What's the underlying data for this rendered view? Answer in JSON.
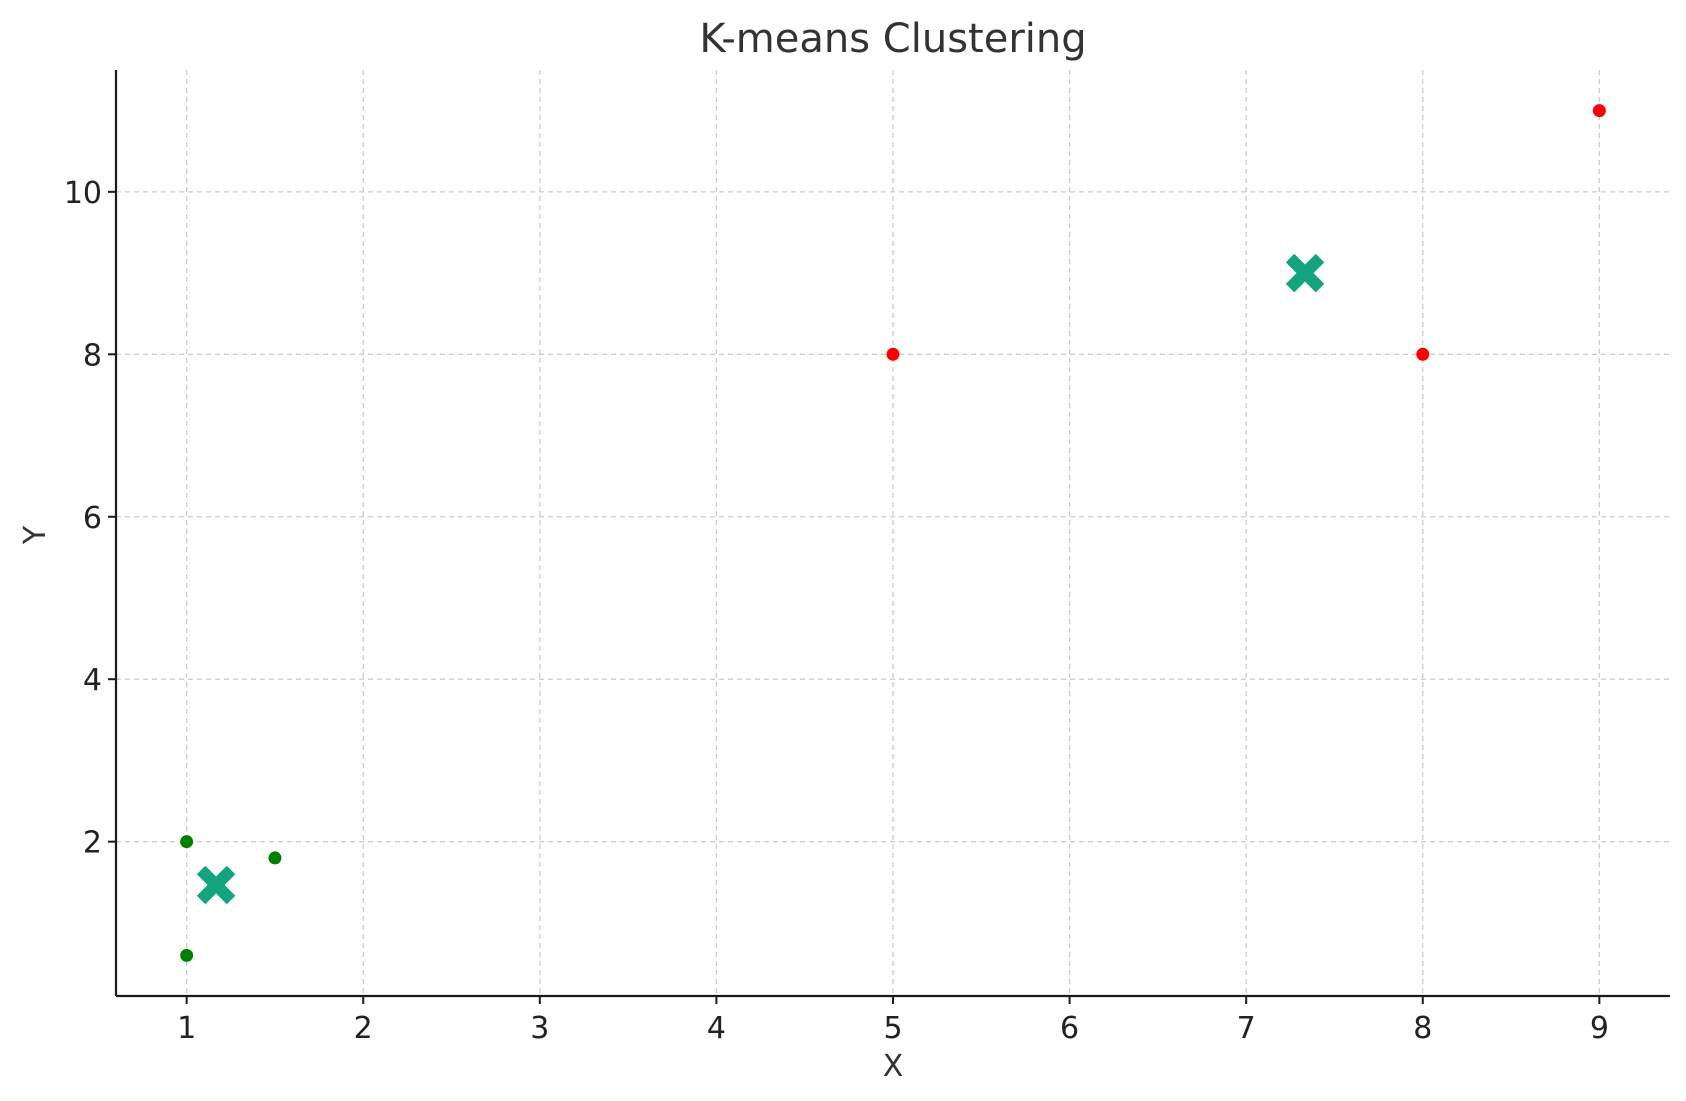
{
  "chart_data": {
    "type": "scatter",
    "title": "K-means Clustering",
    "xlabel": "X",
    "ylabel": "Y",
    "xlim": [
      0.6,
      9.4
    ],
    "ylim": [
      0.1,
      11.5
    ],
    "xticks": [
      1,
      2,
      3,
      4,
      5,
      6,
      7,
      8,
      9
    ],
    "yticks": [
      2,
      4,
      6,
      8,
      10
    ],
    "grid": true,
    "series": [
      {
        "color": "#008000",
        "marker": "dot",
        "points": [
          [
            1,
            2
          ],
          [
            1.5,
            1.8
          ],
          [
            1,
            0.6
          ]
        ]
      },
      {
        "color": "#ff0000",
        "marker": "dot",
        "points": [
          [
            5,
            8
          ],
          [
            8,
            8
          ],
          [
            9,
            11
          ]
        ]
      },
      {
        "color": "#13a37f",
        "marker": "x",
        "points": [
          [
            1.1667,
            1.4667
          ],
          [
            7.3333,
            9
          ]
        ]
      }
    ]
  }
}
